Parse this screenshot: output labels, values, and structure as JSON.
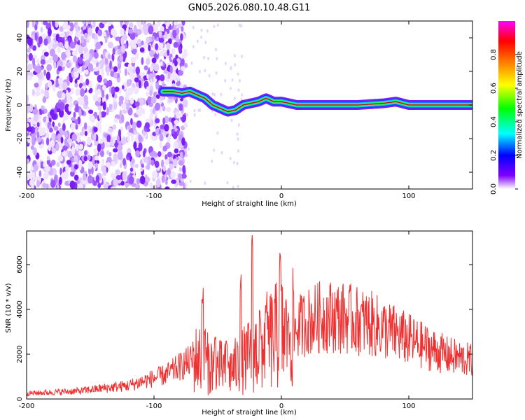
{
  "title": "GN05.2026.080.10.48.G11",
  "chart_data": [
    {
      "type": "heatmap",
      "title": "GN05.2026.080.10.48.G11",
      "xlabel": "Height of straight line (km)",
      "ylabel": "Frequency (Hz)",
      "xlim": [
        -200,
        150
      ],
      "ylim": [
        -50,
        50
      ],
      "xticks": [
        "-200",
        "-100",
        "0",
        "100"
      ],
      "yticks": [
        "40",
        "20",
        "0",
        "-20",
        "-40"
      ],
      "colorbar": {
        "label": "Normalized spectral amplitude",
        "range": [
          0,
          1
        ],
        "ticks": [
          "0.0",
          "0.2",
          "0.4",
          "0.6",
          "0.8"
        ],
        "colors": [
          "#ffffff",
          "#8000ff",
          "#0000ff",
          "#00ffff",
          "#00ff00",
          "#ffff00",
          "#ff8000",
          "#ff0000",
          "#ff00ff"
        ]
      },
      "noise_region_x": [
        -200,
        -75
      ],
      "trace": {
        "x": [
          -93,
          -85,
          -78,
          -72,
          -66,
          -60,
          -54,
          -48,
          -42,
          -36,
          -30,
          -24,
          -18,
          -12,
          -6,
          0,
          6,
          12,
          20,
          40,
          60,
          80,
          90,
          100,
          120,
          150
        ],
        "y": [
          8,
          8,
          7,
          8,
          6,
          4,
          0,
          -2,
          -4,
          -3,
          0,
          1,
          2,
          4,
          2,
          2,
          1,
          0,
          0,
          0,
          0,
          1,
          2,
          0,
          0,
          0
        ]
      }
    },
    {
      "type": "line",
      "xlabel": "Height of straight line (km)",
      "ylabel": "SNR (10 * v/v)",
      "xlim": [
        -200,
        150
      ],
      "ylim": [
        0,
        7500
      ],
      "xticks": [
        "-200",
        "-100",
        "0",
        "100"
      ],
      "yticks": [
        "0",
        "2000",
        "4000",
        "6000"
      ],
      "color": "#f03030",
      "envelope": {
        "x": [
          -200,
          -160,
          -120,
          -90,
          -75,
          -65,
          -55,
          -40,
          -25,
          -10,
          0,
          10,
          20,
          30,
          40,
          55,
          70,
          90,
          110,
          130,
          150
        ],
        "y": [
          250,
          350,
          600,
          1100,
          1600,
          1800,
          1500,
          1300,
          1900,
          2600,
          2900,
          3100,
          3450,
          3650,
          3700,
          3550,
          3350,
          2900,
          2400,
          1950,
          1700
        ]
      },
      "spikes": [
        {
          "x": -62,
          "y": 5000
        },
        {
          "x": -60,
          "y": 3200
        },
        {
          "x": -52,
          "y": 2900
        },
        {
          "x": -43,
          "y": 2700
        },
        {
          "x": -32,
          "y": 5600
        },
        {
          "x": -23,
          "y": 7400
        },
        {
          "x": -17,
          "y": 4100
        },
        {
          "x": -12,
          "y": 4300
        },
        {
          "x": -1,
          "y": 6600
        },
        {
          "x": 5,
          "y": 3900
        }
      ]
    }
  ]
}
